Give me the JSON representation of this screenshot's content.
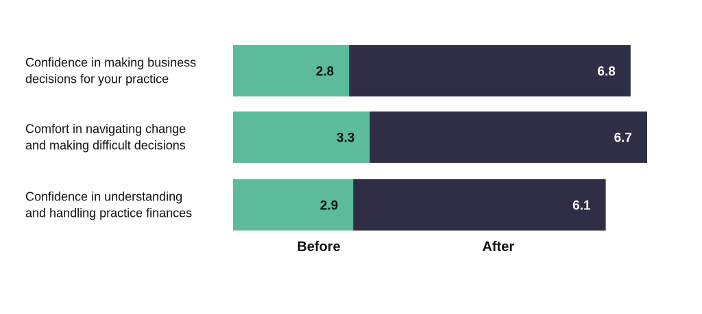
{
  "chart_data": {
    "type": "bar",
    "orientation": "horizontal",
    "stacked": true,
    "title": "",
    "xlabel": "",
    "ylabel": "",
    "categories": [
      [
        "Confidence in making business",
        "decisions for your practice"
      ],
      [
        "Comfort in navigating change",
        "and making difficult decisions"
      ],
      [
        "Confidence in understanding",
        "and handling practice finances"
      ]
    ],
    "series": [
      {
        "name": "Before",
        "values": [
          2.8,
          3.3,
          2.9
        ],
        "color": "#5bbb9a",
        "label_color": "#111111"
      },
      {
        "name": "After",
        "values": [
          6.8,
          6.7,
          6.1
        ],
        "color": "#2e2e47",
        "label_color": "#ffffff"
      }
    ],
    "value_labels": [
      [
        "2.8",
        "3.3",
        "2.9"
      ],
      [
        "6.8",
        "6.7",
        "6.1"
      ]
    ],
    "xlim": [
      0,
      10
    ],
    "grid": false,
    "legend": "below chart, as plain text labels"
  }
}
